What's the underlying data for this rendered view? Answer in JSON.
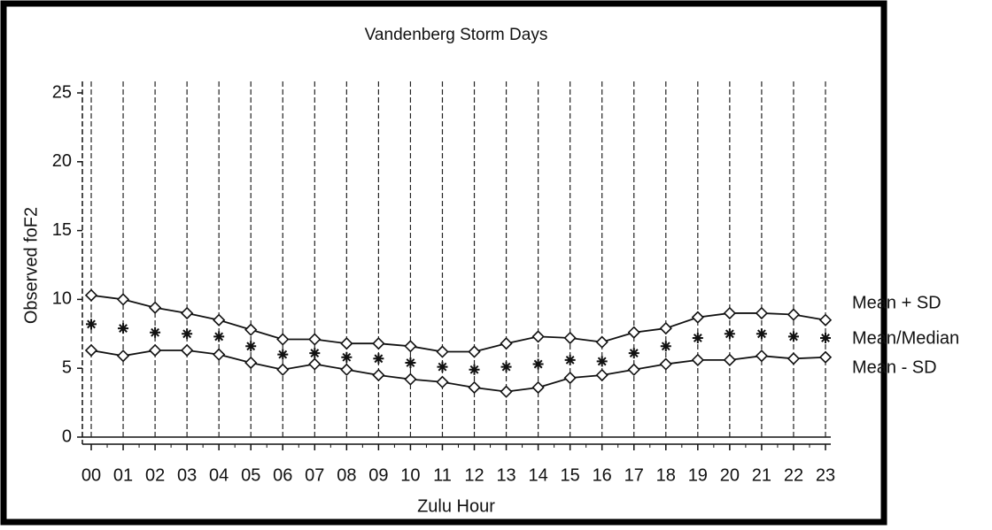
{
  "chart_data": {
    "type": "line",
    "title": "Vandenberg Storm Days",
    "x_label": "Zulu Hour",
    "y_label": "Observed foF2",
    "categories": [
      "00",
      "01",
      "02",
      "03",
      "04",
      "05",
      "06",
      "07",
      "08",
      "09",
      "10",
      "11",
      "12",
      "13",
      "14",
      "15",
      "16",
      "17",
      "18",
      "19",
      "20",
      "21",
      "22",
      "23"
    ],
    "ylim": [
      0,
      25
    ],
    "yticks": [
      0,
      5,
      10,
      15,
      20,
      25
    ],
    "grid": true,
    "series": [
      {
        "name": "Mean + SD",
        "color": "#111111",
        "marker": "diamond",
        "line": true,
        "values": [
          10.3,
          10.0,
          9.4,
          9.0,
          8.5,
          7.8,
          7.1,
          7.1,
          6.8,
          6.8,
          6.6,
          6.2,
          6.2,
          6.8,
          7.3,
          7.2,
          6.9,
          7.6,
          7.9,
          8.7,
          9.0,
          9.0,
          8.9,
          8.5
        ]
      },
      {
        "name": "Mean/Median",
        "color": "#111111",
        "marker": "asterisk",
        "line": false,
        "values": [
          8.2,
          7.9,
          7.6,
          7.5,
          7.3,
          6.6,
          6.0,
          6.1,
          5.8,
          5.7,
          5.4,
          5.1,
          4.9,
          5.1,
          5.3,
          5.6,
          5.5,
          6.1,
          6.6,
          7.2,
          7.5,
          7.5,
          7.3,
          7.2
        ]
      },
      {
        "name": "Mean - SD",
        "color": "#111111",
        "marker": "diamond",
        "line": true,
        "values": [
          6.3,
          5.9,
          6.3,
          6.3,
          6.0,
          5.4,
          4.9,
          5.3,
          4.9,
          4.5,
          4.2,
          4.0,
          3.6,
          3.3,
          3.6,
          4.3,
          4.5,
          4.9,
          5.3,
          5.6,
          5.6,
          5.9,
          5.7,
          5.8
        ]
      }
    ]
  }
}
